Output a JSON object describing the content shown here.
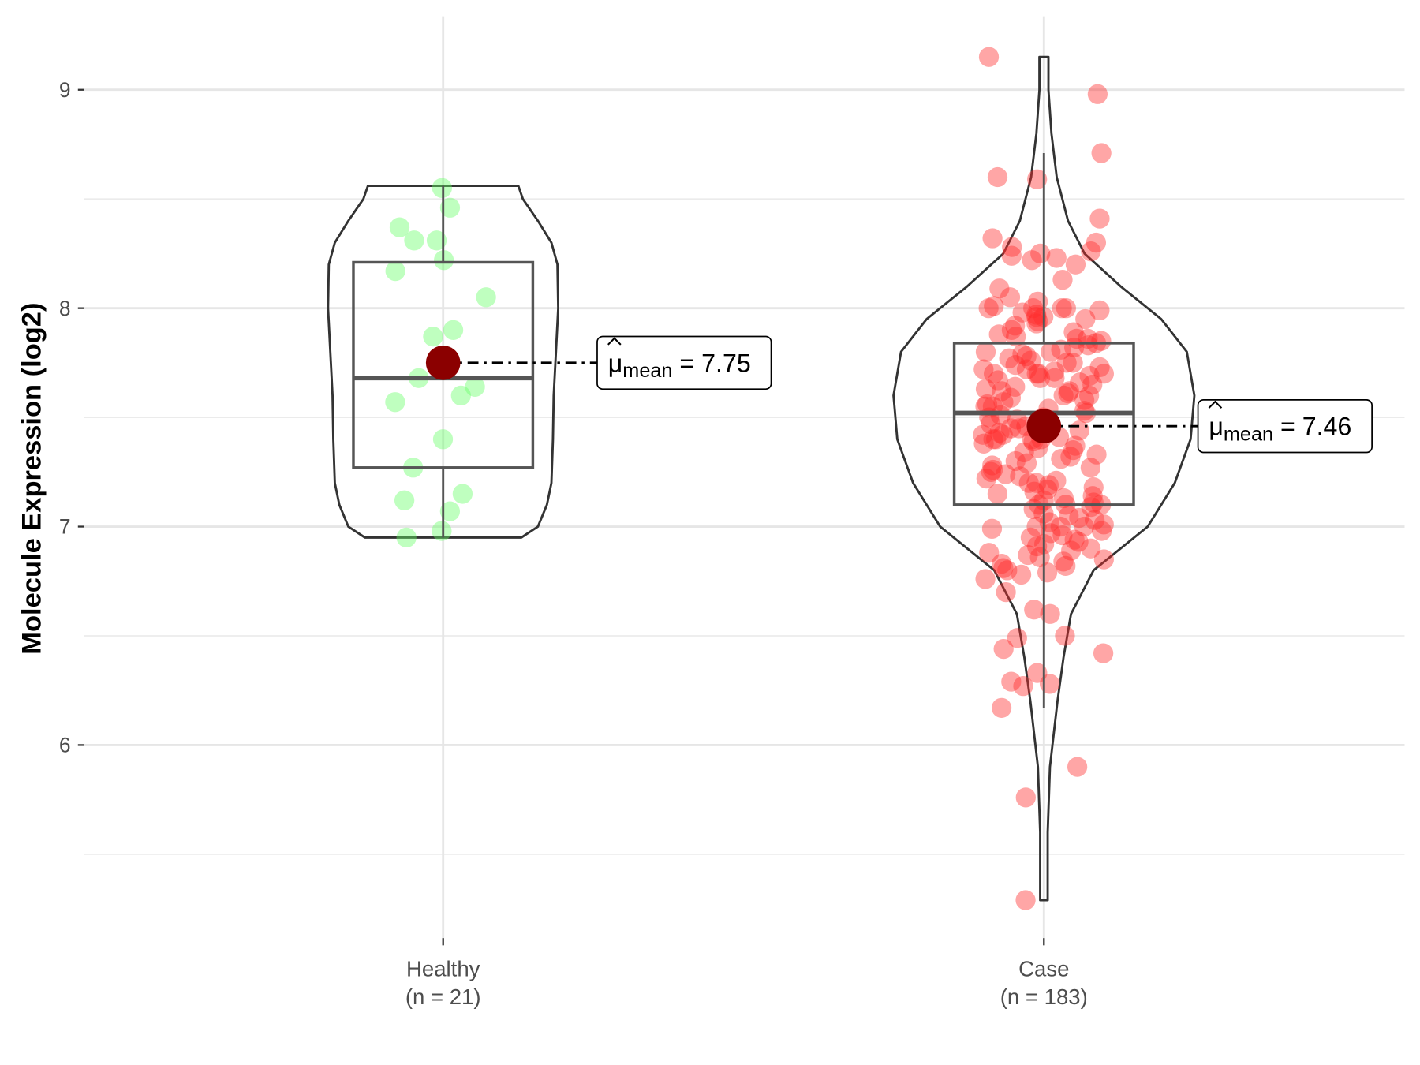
{
  "chart_data": {
    "type": "violin-box-jitter",
    "title": "",
    "xlabel": "",
    "ylabel": "Molecule Expression (log2)",
    "ylim": [
      5.1,
      9.33
    ],
    "yticks": [
      6,
      7,
      8,
      9
    ],
    "ytick_labels": [
      "6",
      "7",
      "8",
      "9"
    ],
    "grid": true,
    "colors": {
      "Healthy": "#66ff66",
      "Case": "#ff2a2a",
      "mean_point": "#8b0000"
    },
    "groups": [
      {
        "name": "Healthy",
        "tick_label": "Healthy",
        "n_label": "(n = 21)",
        "mean": 7.75,
        "mean_label": {
          "symbol": "μ",
          "subscript": "mean",
          "eq": " = ",
          "value": "7.75"
        },
        "box": {
          "whisker_low": 6.95,
          "q1": 7.27,
          "median": 7.68,
          "q3": 8.21,
          "whisker_high": 8.56
        },
        "violin": [
          [
            6.95,
            0.52
          ],
          [
            7.0,
            0.63
          ],
          [
            7.1,
            0.69
          ],
          [
            7.2,
            0.72
          ],
          [
            7.4,
            0.73
          ],
          [
            7.6,
            0.735
          ],
          [
            7.8,
            0.75
          ],
          [
            8.0,
            0.765
          ],
          [
            8.2,
            0.76
          ],
          [
            8.3,
            0.72
          ],
          [
            8.4,
            0.63
          ],
          [
            8.5,
            0.53
          ],
          [
            8.56,
            0.5
          ]
        ],
        "points": [
          8.55,
          8.46,
          8.37,
          8.31,
          8.31,
          8.22,
          8.17,
          8.05,
          7.9,
          7.87,
          7.68,
          7.64,
          7.6,
          7.57,
          7.4,
          7.27,
          7.15,
          7.12,
          7.07,
          6.98,
          6.95
        ]
      },
      {
        "name": "Case",
        "tick_label": "Case",
        "n_label": "(n = 183)",
        "mean": 7.46,
        "mean_label": {
          "symbol": "μ",
          "subscript": "mean",
          "eq": " = ",
          "value": "7.46"
        },
        "box": {
          "whisker_low": 6.17,
          "q1": 7.1,
          "median": 7.52,
          "q3": 7.84,
          "whisker_high": 8.71
        },
        "violin": [
          [
            5.29,
            0.025
          ],
          [
            5.6,
            0.025
          ],
          [
            5.9,
            0.04
          ],
          [
            6.2,
            0.09
          ],
          [
            6.4,
            0.13
          ],
          [
            6.6,
            0.18
          ],
          [
            6.8,
            0.33
          ],
          [
            6.9,
            0.51
          ],
          [
            7.0,
            0.69
          ],
          [
            7.2,
            0.87
          ],
          [
            7.4,
            0.975
          ],
          [
            7.6,
            1.0
          ],
          [
            7.8,
            0.95
          ],
          [
            7.95,
            0.78
          ],
          [
            8.1,
            0.51
          ],
          [
            8.25,
            0.27
          ],
          [
            8.4,
            0.16
          ],
          [
            8.6,
            0.085
          ],
          [
            8.8,
            0.05
          ],
          [
            9.0,
            0.03
          ],
          [
            9.15,
            0.03
          ]
        ],
        "points": [
          9.15,
          8.98,
          8.71,
          8.6,
          8.59,
          8.41,
          6.7,
          6.62,
          6.6,
          6.5,
          6.49,
          6.44,
          6.42,
          6.33,
          6.29,
          6.28,
          6.27,
          6.17,
          5.9,
          5.76,
          5.29,
          8.32,
          8.3,
          8.28,
          8.26,
          8.25,
          8.24,
          8.23,
          8.22,
          8.2,
          8.13,
          8.09,
          8.05,
          8.03,
          8.01,
          8.0,
          8.0,
          8.0,
          8.0,
          7.99,
          7.98,
          7.97,
          7.96,
          7.96,
          7.95,
          7.94,
          7.93,
          7.92,
          7.9,
          7.89,
          7.88,
          7.87,
          7.86,
          7.86,
          7.85,
          7.84,
          7.83,
          7.82,
          7.81,
          7.8,
          7.8,
          7.79,
          7.78,
          7.77,
          7.76,
          7.75,
          7.75,
          7.74,
          7.73,
          7.72,
          7.72,
          7.71,
          7.7,
          7.7,
          7.7,
          7.7,
          7.69,
          7.68,
          7.68,
          7.67,
          7.66,
          7.65,
          7.64,
          7.63,
          7.62,
          7.62,
          7.61,
          7.6,
          7.6,
          7.59,
          7.58,
          7.57,
          7.56,
          7.55,
          7.55,
          7.54,
          7.53,
          7.52,
          7.51,
          7.5,
          7.5,
          7.49,
          7.48,
          7.47,
          7.46,
          7.45,
          7.45,
          7.44,
          7.43,
          7.42,
          7.42,
          7.41,
          7.4,
          7.4,
          7.4,
          7.4,
          7.39,
          7.38,
          7.37,
          7.36,
          7.35,
          7.34,
          7.33,
          7.32,
          7.31,
          7.3,
          7.29,
          7.28,
          7.27,
          7.26,
          7.25,
          7.24,
          7.23,
          7.22,
          7.21,
          7.2,
          7.2,
          7.19,
          7.18,
          7.17,
          7.16,
          7.15,
          7.14,
          7.13,
          7.12,
          7.11,
          7.1,
          7.1,
          7.1,
          7.09,
          7.08,
          7.06,
          7.05,
          7.04,
          7.03,
          7.02,
          7.01,
          7.0,
          7.0,
          7.0,
          6.99,
          6.98,
          6.97,
          6.96,
          6.95,
          6.94,
          6.93,
          6.92,
          6.91,
          6.9,
          6.89,
          6.88,
          6.87,
          6.86,
          6.85,
          6.84,
          6.83,
          6.82,
          6.81,
          6.8,
          6.79,
          6.78,
          6.76
        ]
      }
    ]
  }
}
